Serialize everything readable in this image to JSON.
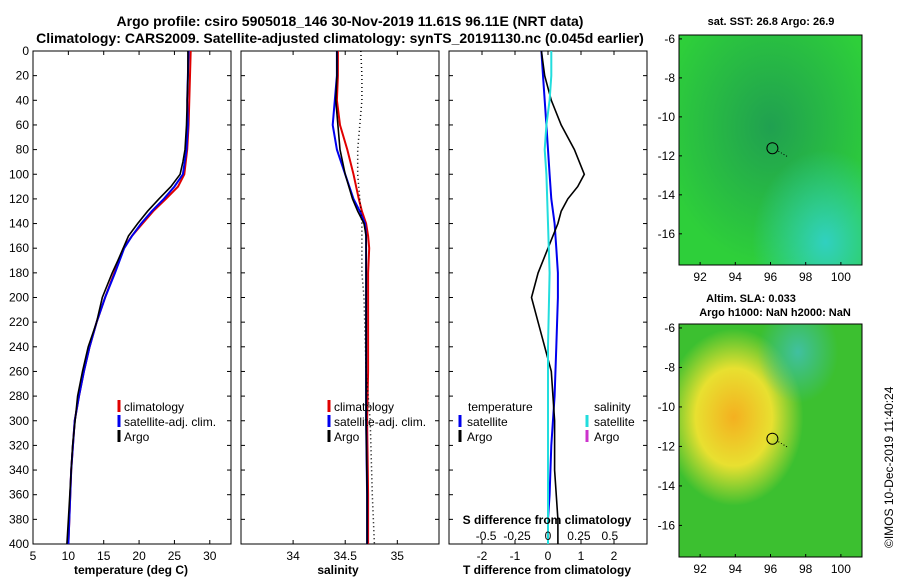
{
  "title": {
    "line1": "Argo profile: csiro 5905018_146 30-Nov-2019 11.61S 96.11E (NRT data)",
    "line2": "Climatology: CARS2009. Satellite-adjusted climatology: synTS_20191130.nc (0.045d earlier)"
  },
  "colors": {
    "climatology": "#e00000",
    "satellite": "#0000ee",
    "argo": "#000000",
    "salinity_satellite": "#22dddd",
    "salinity_argo": "#cc33cc"
  },
  "chart_data": [
    {
      "type": "line",
      "id": "temperature",
      "xlabel": "temperature (deg C)",
      "ylabel": "depth",
      "xlim": [
        5,
        33
      ],
      "ylim": [
        400,
        0
      ],
      "xticks": [
        "5",
        "10",
        "15",
        "20",
        "25",
        "30"
      ],
      "yticks": [
        "0",
        "20",
        "40",
        "60",
        "80",
        "100",
        "120",
        "140",
        "160",
        "180",
        "200",
        "220",
        "240",
        "260",
        "280",
        "300",
        "320",
        "340",
        "360",
        "380",
        "400"
      ],
      "legend": [
        "climatology",
        "satellite-adj. clim.",
        "Argo"
      ],
      "series": [
        {
          "name": "climatology",
          "x": [
            27.3,
            27.2,
            27.1,
            27.0,
            26.8,
            26.4,
            25.5,
            23.8,
            22.0,
            20.5,
            19.0,
            17.8,
            16.5,
            15.2,
            14.0,
            13.0,
            12.2,
            11.5,
            10.9,
            10.4,
            10.0
          ],
          "y": [
            0,
            20,
            40,
            60,
            80,
            100,
            110,
            120,
            130,
            140,
            150,
            160,
            180,
            200,
            220,
            240,
            260,
            280,
            300,
            340,
            400
          ]
        },
        {
          "name": "satellite-adj. clim.",
          "x": [
            27.0,
            26.9,
            26.8,
            26.9,
            26.7,
            26.2,
            25.0,
            23.5,
            21.8,
            20.3,
            19.0,
            17.9,
            16.6,
            15.2,
            14.0,
            13.0,
            12.2,
            11.5,
            10.9,
            10.4,
            10.0
          ],
          "y": [
            0,
            20,
            40,
            60,
            80,
            100,
            110,
            120,
            130,
            140,
            150,
            160,
            180,
            200,
            220,
            240,
            260,
            280,
            300,
            340,
            400
          ]
        },
        {
          "name": "Argo",
          "x": [
            26.9,
            26.9,
            26.8,
            26.7,
            26.5,
            26.2,
            25.8,
            24.5,
            22.8,
            21.2,
            19.8,
            18.5,
            17.0,
            16.2,
            14.8,
            14.0,
            12.8,
            12.0,
            11.3,
            10.6,
            10.0,
            9.8
          ],
          "y": [
            0,
            20,
            40,
            60,
            80,
            90,
            100,
            110,
            120,
            130,
            140,
            150,
            170,
            180,
            200,
            220,
            240,
            260,
            280,
            320,
            380,
            400
          ]
        }
      ]
    },
    {
      "type": "line",
      "id": "salinity",
      "xlabel": "salinity",
      "xlim": [
        33.5,
        35.4
      ],
      "ylim": [
        400,
        0
      ],
      "xticks": [
        "34",
        "34.5",
        "35"
      ],
      "legend": [
        "climatology",
        "satellite-adj. clim.",
        "Argo"
      ],
      "series": [
        {
          "name": "climatology",
          "x": [
            34.43,
            34.43,
            34.42,
            34.45,
            34.52,
            34.58,
            34.63,
            34.66,
            34.7,
            34.72,
            34.73,
            34.72,
            34.72,
            34.72,
            34.71,
            34.72,
            34.72
          ],
          "y": [
            0,
            20,
            40,
            60,
            80,
            100,
            120,
            130,
            140,
            150,
            160,
            180,
            220,
            260,
            300,
            360,
            400
          ]
        },
        {
          "name": "satellite-adj. clim.",
          "x": [
            34.42,
            34.42,
            34.4,
            34.38,
            34.42,
            34.5,
            34.58,
            34.64,
            34.69,
            34.7,
            34.7,
            34.7,
            34.7,
            34.7,
            34.7,
            34.71,
            34.71
          ],
          "y": [
            0,
            20,
            40,
            60,
            80,
            100,
            120,
            130,
            140,
            150,
            160,
            180,
            220,
            260,
            300,
            360,
            400
          ]
        },
        {
          "name": "Argo",
          "x": [
            34.42,
            34.42,
            34.41,
            34.43,
            34.45,
            34.5,
            34.57,
            34.62,
            34.68,
            34.7,
            34.7,
            34.7,
            34.7,
            34.7,
            34.7,
            34.71,
            34.71
          ],
          "y": [
            0,
            20,
            40,
            60,
            80,
            100,
            120,
            130,
            140,
            150,
            160,
            180,
            220,
            260,
            300,
            360,
            400
          ]
        },
        {
          "name": "std-dotted",
          "x": [
            34.65,
            34.66,
            34.66,
            34.64,
            34.62,
            34.62,
            34.64,
            34.66,
            34.66,
            34.66,
            34.68,
            34.7,
            34.74,
            34.76,
            34.78
          ],
          "y": [
            0,
            20,
            40,
            60,
            80,
            100,
            120,
            140,
            160,
            180,
            200,
            260,
            300,
            360,
            400
          ]
        }
      ]
    },
    {
      "type": "line",
      "id": "difference",
      "xlabel": "T difference from climatology",
      "xlabel_top": "S difference from climatology",
      "xlim": [
        -3,
        3
      ],
      "ylim": [
        400,
        0
      ],
      "xticks": [
        "-2",
        "-1",
        "0",
        "1",
        "2"
      ],
      "xticks_s": [
        "-0.5",
        "-0.25",
        "0",
        "0.25",
        "0.5"
      ],
      "legend_temperature": {
        "heading": "temperature",
        "items": [
          "satellite",
          "Argo"
        ]
      },
      "legend_salinity": {
        "heading": "salinity",
        "items": [
          "satellite",
          "Argo"
        ]
      },
      "series": [
        {
          "name": "T satellite",
          "x": [
            -0.2,
            -0.15,
            -0.1,
            -0.05,
            0.0,
            0.05,
            0.1,
            0.2,
            0.25,
            0.3,
            0.3,
            0.25,
            0.2,
            0.1,
            0.05,
            0.0,
            0.0
          ],
          "y": [
            0,
            20,
            40,
            60,
            80,
            100,
            120,
            140,
            160,
            180,
            200,
            240,
            280,
            320,
            360,
            380,
            400
          ]
        },
        {
          "name": "T Argo",
          "x": [
            -0.2,
            -0.1,
            0.1,
            0.4,
            0.8,
            1.1,
            0.9,
            0.6,
            0.4,
            0.3,
            0.0,
            -0.3,
            -0.5,
            -0.3,
            0.1,
            0.2,
            0.2,
            0.3,
            0.3
          ],
          "y": [
            0,
            20,
            40,
            60,
            80,
            100,
            110,
            120,
            130,
            140,
            160,
            180,
            200,
            220,
            260,
            300,
            340,
            380,
            400
          ]
        },
        {
          "name": "S satellite",
          "x": [
            0.1,
            0.1,
            0.05,
            -0.05,
            -0.1,
            -0.05,
            0.0,
            0.05,
            0.0,
            0.0,
            0.0
          ],
          "y": [
            0,
            20,
            40,
            60,
            80,
            100,
            140,
            180,
            240,
            320,
            400
          ]
        }
      ]
    }
  ],
  "maps": [
    {
      "id": "sst-map",
      "title": "sat. SST: 26.8 Argo: 26.9",
      "xticks": [
        "92",
        "94",
        "96",
        "98",
        "100"
      ],
      "yticks": [
        "-6",
        "-8",
        "-10",
        "-12",
        "-14",
        "-16"
      ],
      "argo_position": {
        "lon": 96.11,
        "lat": -11.61
      }
    },
    {
      "id": "sla-map",
      "title_line1": "Altim. SLA: 0.033",
      "title_line2": "Argo h1000: NaN h2000: NaN",
      "xticks": [
        "92",
        "94",
        "96",
        "98",
        "100"
      ],
      "yticks": [
        "-6",
        "-8",
        "-10",
        "-12",
        "-14",
        "-16"
      ],
      "argo_position": {
        "lon": 96.11,
        "lat": -11.61
      }
    }
  ],
  "credit": "©IMOS 10-Dec-2019 11:40:24"
}
